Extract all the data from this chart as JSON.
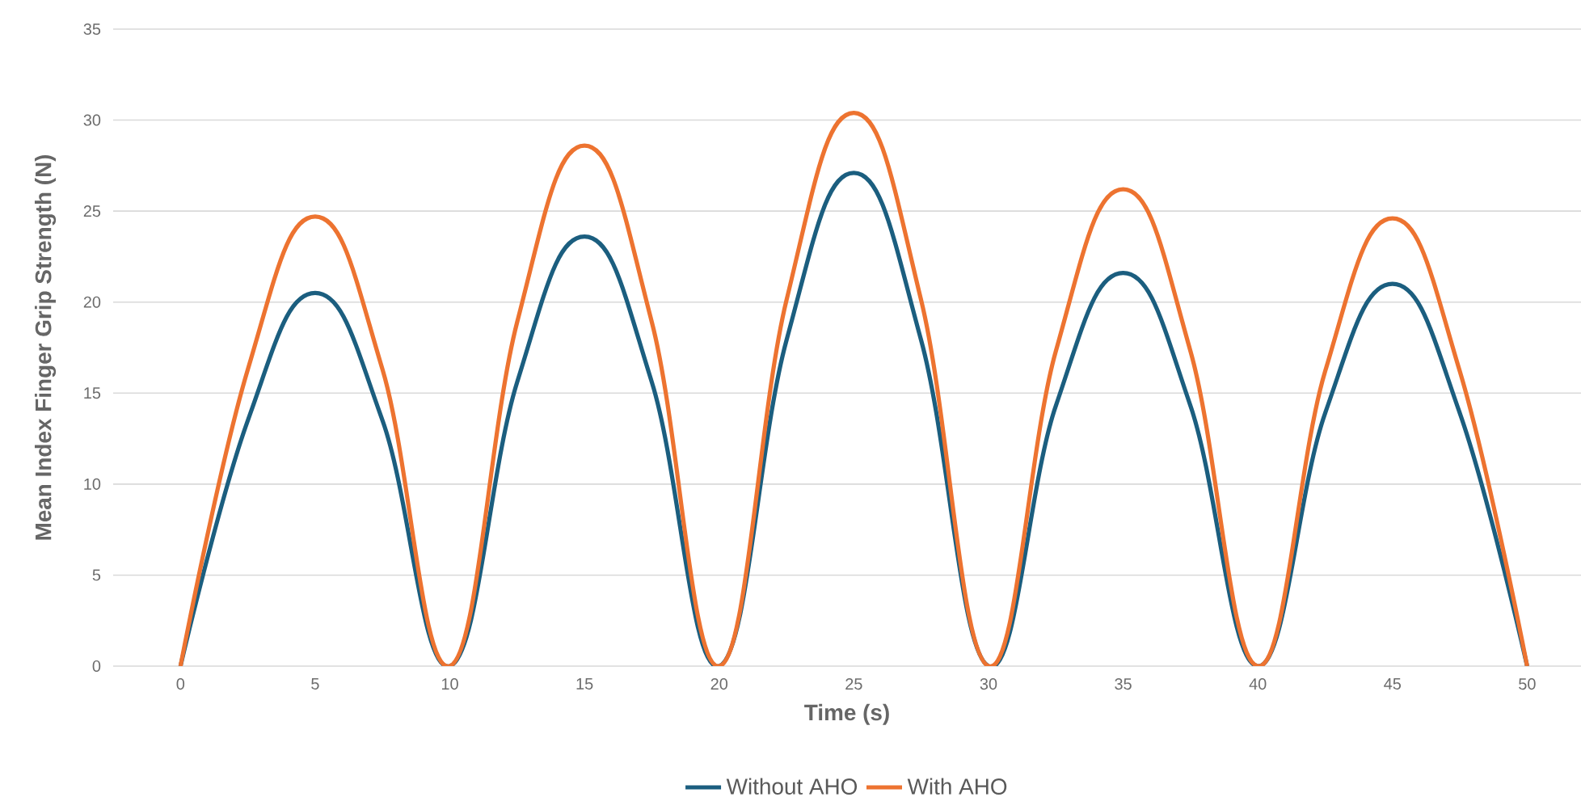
{
  "chart_data": {
    "type": "line",
    "xlabel": "Time (s)",
    "ylabel": "Mean Index Finger Grip Strength (N)",
    "x": [
      0,
      2.5,
      5,
      7.5,
      10,
      12.5,
      15,
      17.5,
      20,
      22.5,
      25,
      27.5,
      30,
      32.5,
      35,
      37.5,
      40,
      42.5,
      45,
      47.5,
      50
    ],
    "series": [
      {
        "name": "Without AHO",
        "color": "#1b5e7f",
        "values": [
          0,
          13.5,
          20.5,
          13.5,
          0,
          15.6,
          23.6,
          15.6,
          0,
          17.9,
          27.1,
          17.9,
          0,
          14.3,
          21.6,
          14.3,
          0,
          13.9,
          21.0,
          13.9,
          0
        ]
      },
      {
        "name": "With AHO",
        "color": "#ed7330",
        "values": [
          0,
          16.3,
          24.7,
          16.3,
          0,
          18.9,
          28.6,
          18.9,
          0,
          20.1,
          30.4,
          20.1,
          0,
          17.3,
          26.2,
          17.3,
          0,
          16.2,
          24.6,
          16.2,
          0
        ]
      }
    ],
    "xlim": [
      -2.5,
      52
    ],
    "xticks": [
      0,
      5,
      10,
      15,
      20,
      25,
      30,
      35,
      40,
      45,
      50
    ],
    "ylim": [
      0,
      35
    ],
    "yticks": [
      0,
      5,
      10,
      15,
      20,
      25,
      30,
      35
    ],
    "grid": "y",
    "legend": "bottom",
    "marker": "none",
    "line_style": "solid"
  }
}
